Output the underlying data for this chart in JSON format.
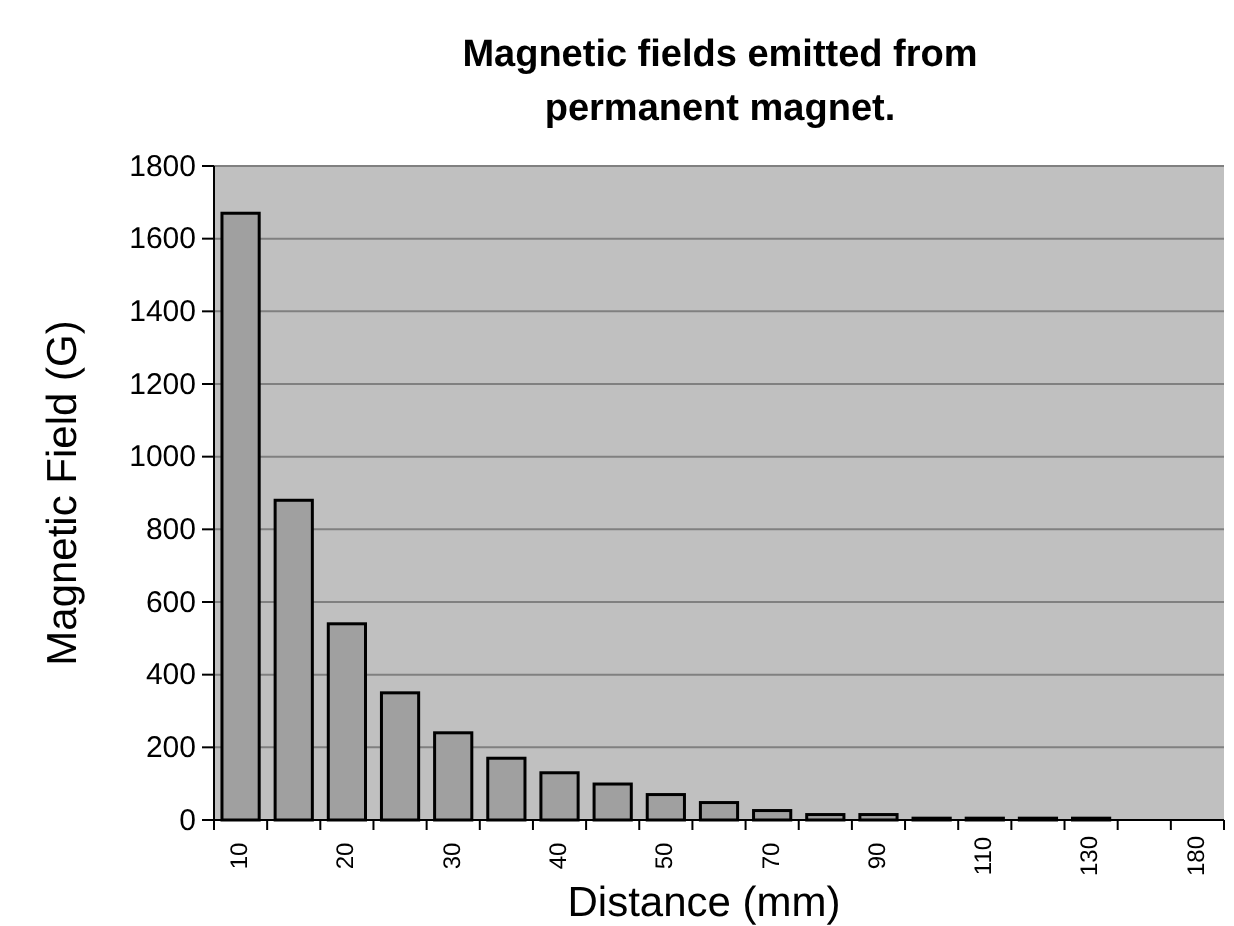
{
  "chart_data": {
    "type": "bar",
    "title": "Magnetic fields emitted from permanent magnet.",
    "xlabel": "Distance (mm)",
    "ylabel": "Magnetic Field (G)",
    "categories": [
      "10",
      null,
      "20",
      null,
      "30",
      null,
      "40",
      null,
      "50",
      null,
      "70",
      null,
      "90",
      null,
      "110",
      null,
      "130",
      null,
      "180"
    ],
    "values": [
      1670,
      880,
      540,
      350,
      240,
      170,
      130,
      99,
      70,
      48,
      26,
      15,
      15,
      5,
      5,
      5,
      5,
      null,
      null
    ],
    "color": "#a0a0a0",
    "ylim": [
      0,
      1800
    ],
    "yticks": [
      0,
      200,
      400,
      600,
      800,
      1000,
      1200,
      1400,
      1600,
      1800
    ],
    "grid": "y"
  }
}
